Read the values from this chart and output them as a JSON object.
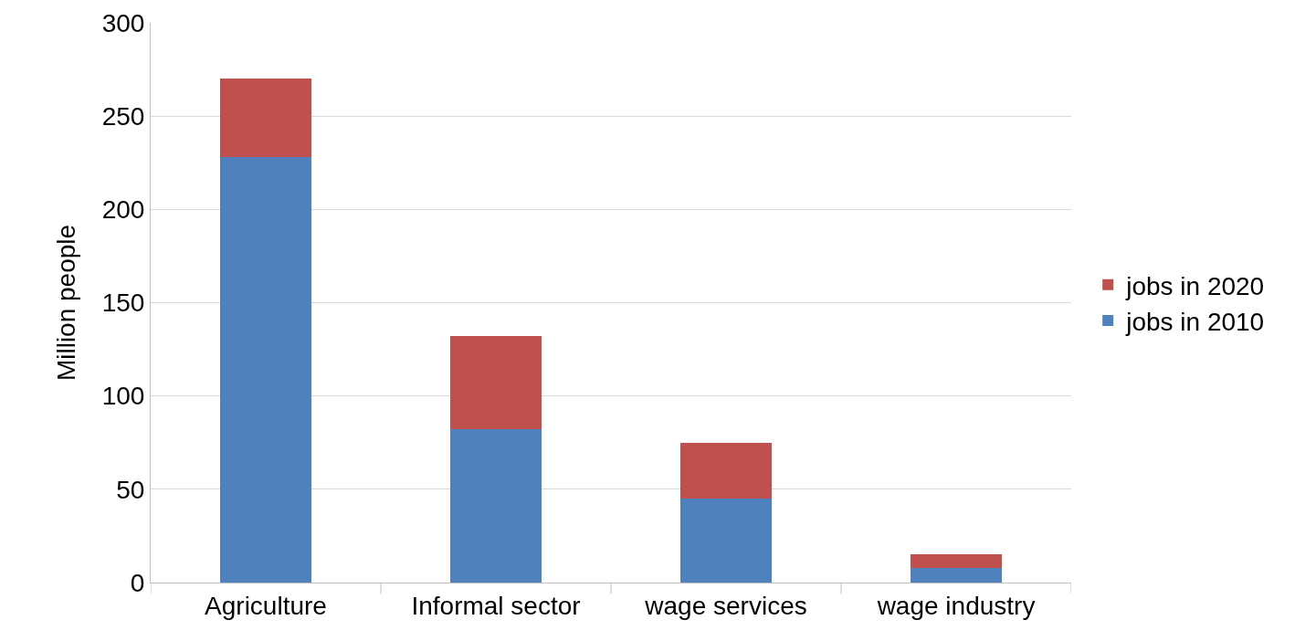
{
  "chart_data": {
    "type": "bar",
    "stacked": true,
    "ylabel": "Million people",
    "categories": [
      "Agriculture",
      "Informal sector",
      "wage services",
      "wage industry"
    ],
    "series": [
      {
        "name": "jobs in 2010",
        "color": "#4f81bd",
        "values": [
          228,
          82,
          45,
          8
        ]
      },
      {
        "name": "jobs in 2020",
        "color": "#c0504d",
        "values": [
          42,
          50,
          30,
          7
        ]
      }
    ],
    "ylim": [
      0,
      300
    ],
    "yticks": [
      0,
      50,
      100,
      150,
      200,
      250,
      300
    ],
    "grid": "y",
    "legend": "right"
  }
}
